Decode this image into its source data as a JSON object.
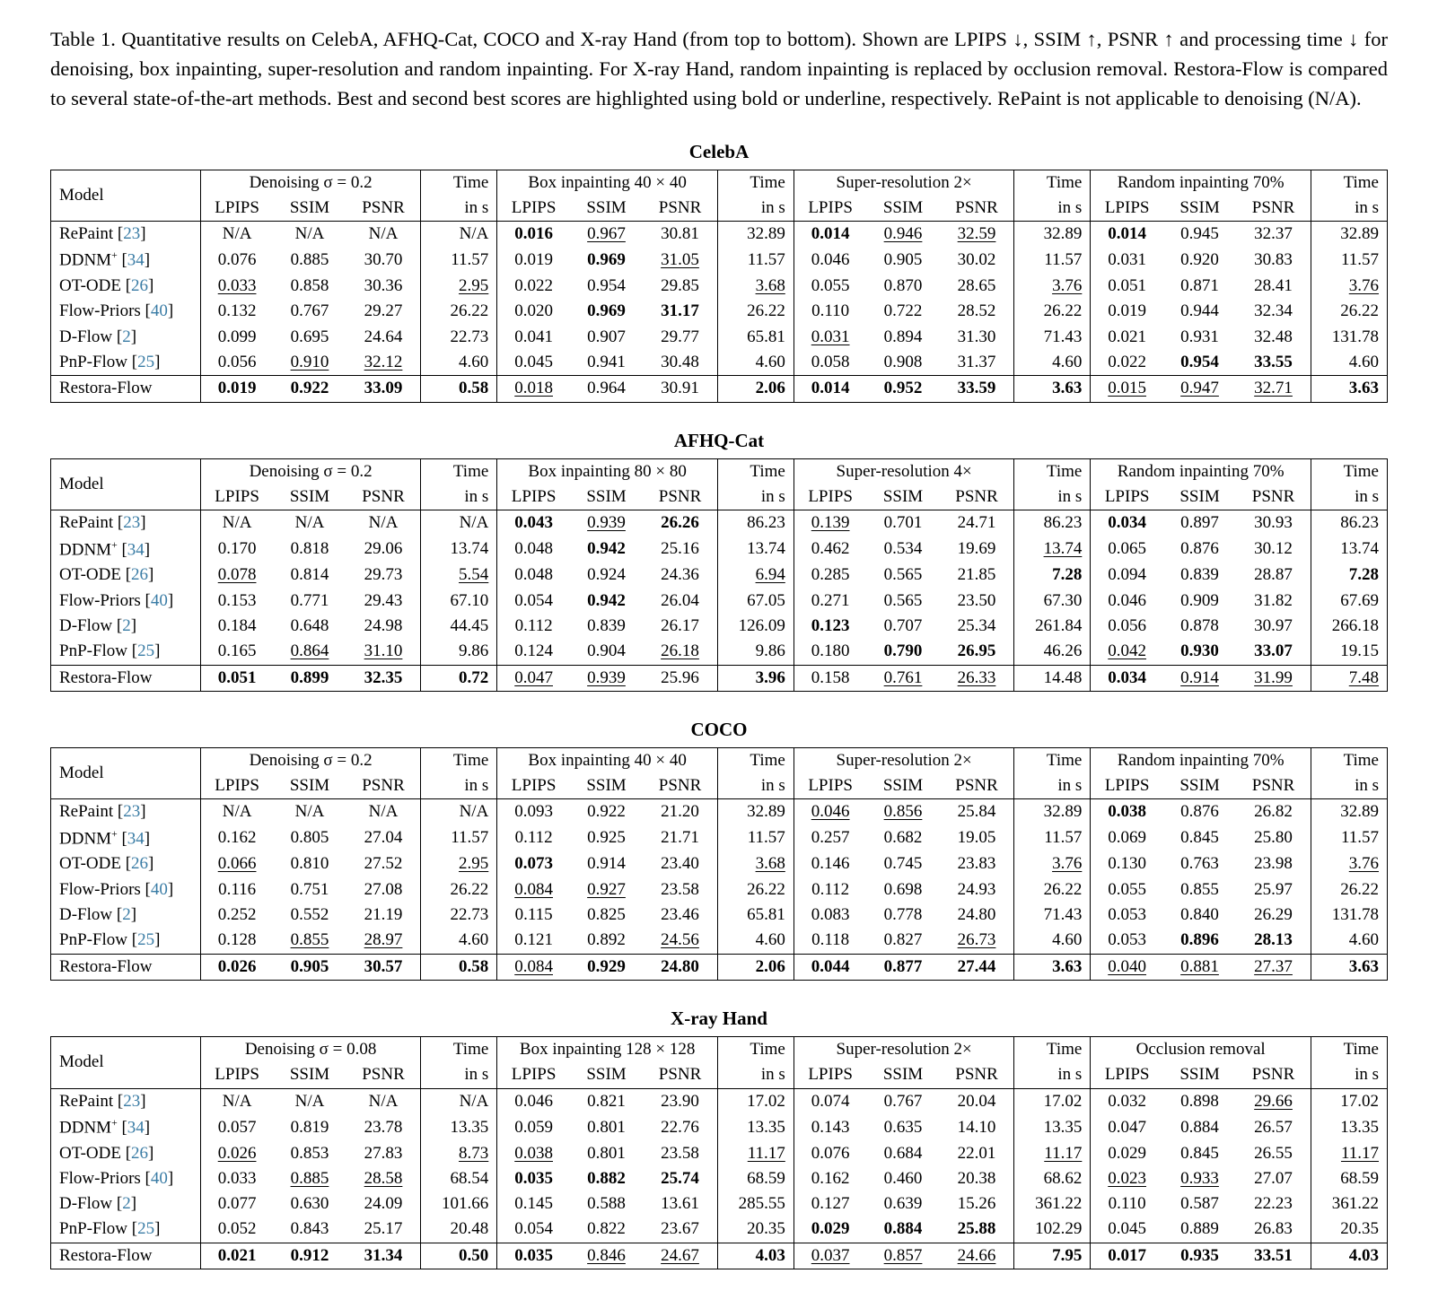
{
  "caption": "Table 1. Quantitative results on CelebA, AFHQ-Cat, COCO and X-ray Hand (from top to bottom). Shown are LPIPS ↓, SSIM ↑, PSNR ↑ and processing time ↓ for denoising, box inpainting, super-resolution and random inpainting. For X-ray Hand, random inpainting is replaced by occlusion removal. Restora-Flow is compared to several state-of-the-art methods. Best and second best scores are highlighted using bold or underline, respectively. RePaint is not applicable to denoising (N/A).",
  "colors": {
    "citation": "#3a7ca5",
    "text": "#000000",
    "background": "#ffffff"
  },
  "headers": {
    "model": "Model",
    "metrics": [
      "LPIPS",
      "SSIM",
      "PSNR"
    ],
    "time_top": "Time",
    "time_unit": "in s"
  },
  "tables": [
    {
      "id": "celeba",
      "title": "CelebA",
      "groups": [
        "Denoising σ = 0.2",
        "Box inpainting 40 × 40",
        "Super-resolution 2×",
        "Random inpainting 70%"
      ],
      "rows": [
        {
          "model": "RePaint",
          "cite": "23",
          "cells": [
            "N/A",
            "N/A",
            "N/A",
            "N/A",
            "b:0.016",
            "u:0.967",
            "30.81",
            "32.89",
            "b:0.014",
            "u:0.946",
            "u:32.59",
            "32.89",
            "b:0.014",
            "0.945",
            "32.37",
            "32.89"
          ]
        },
        {
          "model": "DDNM",
          "sup": "+",
          "cite": "34",
          "cells": [
            "0.076",
            "0.885",
            "30.70",
            "11.57",
            "0.019",
            "b:0.969",
            "u:31.05",
            "11.57",
            "0.046",
            "0.905",
            "30.02",
            "11.57",
            "0.031",
            "0.920",
            "30.83",
            "11.57"
          ]
        },
        {
          "model": "OT-ODE",
          "cite": "26",
          "cells": [
            "u:0.033",
            "0.858",
            "30.36",
            "u:2.95",
            "0.022",
            "0.954",
            "29.85",
            "u:3.68",
            "0.055",
            "0.870",
            "28.65",
            "u:3.76",
            "0.051",
            "0.871",
            "28.41",
            "u:3.76"
          ]
        },
        {
          "model": "Flow-Priors",
          "cite": "40",
          "cells": [
            "0.132",
            "0.767",
            "29.27",
            "26.22",
            "0.020",
            "b:0.969",
            "b:31.17",
            "26.22",
            "0.110",
            "0.722",
            "28.52",
            "26.22",
            "0.019",
            "0.944",
            "32.34",
            "26.22"
          ]
        },
        {
          "model": "D-Flow",
          "cite": "2",
          "cells": [
            "0.099",
            "0.695",
            "24.64",
            "22.73",
            "0.041",
            "0.907",
            "29.77",
            "65.81",
            "u:0.031",
            "0.894",
            "31.30",
            "71.43",
            "0.021",
            "0.931",
            "32.48",
            "131.78"
          ]
        },
        {
          "model": "PnP-Flow",
          "cite": "25",
          "cells": [
            "0.056",
            "u:0.910",
            "u:32.12",
            "4.60",
            "0.045",
            "0.941",
            "30.48",
            "4.60",
            "0.058",
            "0.908",
            "31.37",
            "4.60",
            "0.022",
            "b:0.954",
            "b:33.55",
            "4.60"
          ]
        },
        {
          "model": "Restora-Flow",
          "cells": [
            "b:0.019",
            "b:0.922",
            "b:33.09",
            "b:0.58",
            "u:0.018",
            "0.964",
            "30.91",
            "b:2.06",
            "b:0.014",
            "b:0.952",
            "b:33.59",
            "b:3.63",
            "u:0.015",
            "u:0.947",
            "u:32.71",
            "b:3.63"
          ]
        }
      ]
    },
    {
      "id": "afhq-cat",
      "title": "AFHQ-Cat",
      "groups": [
        "Denoising σ = 0.2",
        "Box inpainting 80 × 80",
        "Super-resolution 4×",
        "Random inpainting 70%"
      ],
      "rows": [
        {
          "model": "RePaint",
          "cite": "23",
          "cells": [
            "N/A",
            "N/A",
            "N/A",
            "N/A",
            "b:0.043",
            "u:0.939",
            "b:26.26",
            "86.23",
            "u:0.139",
            "0.701",
            "24.71",
            "86.23",
            "b:0.034",
            "0.897",
            "30.93",
            "86.23"
          ]
        },
        {
          "model": "DDNM",
          "sup": "+",
          "cite": "34",
          "cells": [
            "0.170",
            "0.818",
            "29.06",
            "13.74",
            "0.048",
            "b:0.942",
            "25.16",
            "13.74",
            "0.462",
            "0.534",
            "19.69",
            "u:13.74",
            "0.065",
            "0.876",
            "30.12",
            "13.74"
          ]
        },
        {
          "model": "OT-ODE",
          "cite": "26",
          "cells": [
            "u:0.078",
            "0.814",
            "29.73",
            "u:5.54",
            "0.048",
            "0.924",
            "24.36",
            "u:6.94",
            "0.285",
            "0.565",
            "21.85",
            "b:7.28",
            "0.094",
            "0.839",
            "28.87",
            "b:7.28"
          ]
        },
        {
          "model": "Flow-Priors",
          "cite": "40",
          "cells": [
            "0.153",
            "0.771",
            "29.43",
            "67.10",
            "0.054",
            "b:0.942",
            "26.04",
            "67.05",
            "0.271",
            "0.565",
            "23.50",
            "67.30",
            "0.046",
            "0.909",
            "31.82",
            "67.69"
          ]
        },
        {
          "model": "D-Flow",
          "cite": "2",
          "cells": [
            "0.184",
            "0.648",
            "24.98",
            "44.45",
            "0.112",
            "0.839",
            "26.17",
            "126.09",
            "b:0.123",
            "0.707",
            "25.34",
            "261.84",
            "0.056",
            "0.878",
            "30.97",
            "266.18"
          ]
        },
        {
          "model": "PnP-Flow",
          "cite": "25",
          "cells": [
            "0.165",
            "u:0.864",
            "u:31.10",
            "9.86",
            "0.124",
            "0.904",
            "u:26.18",
            "9.86",
            "0.180",
            "b:0.790",
            "b:26.95",
            "46.26",
            "u:0.042",
            "b:0.930",
            "b:33.07",
            "19.15"
          ]
        },
        {
          "model": "Restora-Flow",
          "cells": [
            "b:0.051",
            "b:0.899",
            "b:32.35",
            "b:0.72",
            "u:0.047",
            "u:0.939",
            "25.96",
            "b:3.96",
            "0.158",
            "u:0.761",
            "u:26.33",
            "14.48",
            "b:0.034",
            "u:0.914",
            "u:31.99",
            "u:7.48"
          ]
        }
      ]
    },
    {
      "id": "coco",
      "title": "COCO",
      "groups": [
        "Denoising σ = 0.2",
        "Box inpainting 40 × 40",
        "Super-resolution 2×",
        "Random inpainting 70%"
      ],
      "rows": [
        {
          "model": "RePaint",
          "cite": "23",
          "cells": [
            "N/A",
            "N/A",
            "N/A",
            "N/A",
            "0.093",
            "0.922",
            "21.20",
            "32.89",
            "u:0.046",
            "u:0.856",
            "25.84",
            "32.89",
            "b:0.038",
            "0.876",
            "26.82",
            "32.89"
          ]
        },
        {
          "model": "DDNM",
          "sup": "+",
          "cite": "34",
          "cells": [
            "0.162",
            "0.805",
            "27.04",
            "11.57",
            "0.112",
            "0.925",
            "21.71",
            "11.57",
            "0.257",
            "0.682",
            "19.05",
            "11.57",
            "0.069",
            "0.845",
            "25.80",
            "11.57"
          ]
        },
        {
          "model": "OT-ODE",
          "cite": "26",
          "cells": [
            "u:0.066",
            "0.810",
            "27.52",
            "u:2.95",
            "b:0.073",
            "0.914",
            "23.40",
            "u:3.68",
            "0.146",
            "0.745",
            "23.83",
            "u:3.76",
            "0.130",
            "0.763",
            "23.98",
            "u:3.76"
          ]
        },
        {
          "model": "Flow-Priors",
          "cite": "40",
          "cells": [
            "0.116",
            "0.751",
            "27.08",
            "26.22",
            "u:0.084",
            "u:0.927",
            "23.58",
            "26.22",
            "0.112",
            "0.698",
            "24.93",
            "26.22",
            "0.055",
            "0.855",
            "25.97",
            "26.22"
          ]
        },
        {
          "model": "D-Flow",
          "cite": "2",
          "cells": [
            "0.252",
            "0.552",
            "21.19",
            "22.73",
            "0.115",
            "0.825",
            "23.46",
            "65.81",
            "0.083",
            "0.778",
            "24.80",
            "71.43",
            "0.053",
            "0.840",
            "26.29",
            "131.78"
          ]
        },
        {
          "model": "PnP-Flow",
          "cite": "25",
          "cells": [
            "0.128",
            "u:0.855",
            "u:28.97",
            "4.60",
            "0.121",
            "0.892",
            "u:24.56",
            "4.60",
            "0.118",
            "0.827",
            "u:26.73",
            "4.60",
            "0.053",
            "b:0.896",
            "b:28.13",
            "4.60"
          ]
        },
        {
          "model": "Restora-Flow",
          "cells": [
            "b:0.026",
            "b:0.905",
            "b:30.57",
            "b:0.58",
            "u:0.084",
            "b:0.929",
            "b:24.80",
            "b:2.06",
            "b:0.044",
            "b:0.877",
            "b:27.44",
            "b:3.63",
            "u:0.040",
            "u:0.881",
            "u:27.37",
            "b:3.63"
          ]
        }
      ]
    },
    {
      "id": "xray-hand",
      "title": "X-ray Hand",
      "groups": [
        "Denoising σ = 0.08",
        "Box inpainting 128 × 128",
        "Super-resolution 2×",
        "Occlusion removal"
      ],
      "rows": [
        {
          "model": "RePaint",
          "cite": "23",
          "cells": [
            "N/A",
            "N/A",
            "N/A",
            "N/A",
            "0.046",
            "0.821",
            "23.90",
            "17.02",
            "0.074",
            "0.767",
            "20.04",
            "17.02",
            "0.032",
            "0.898",
            "u:29.66",
            "17.02"
          ]
        },
        {
          "model": "DDNM",
          "sup": "+",
          "cite": "34",
          "cells": [
            "0.057",
            "0.819",
            "23.78",
            "13.35",
            "0.059",
            "0.801",
            "22.76",
            "13.35",
            "0.143",
            "0.635",
            "14.10",
            "13.35",
            "0.047",
            "0.884",
            "26.57",
            "13.35"
          ]
        },
        {
          "model": "OT-ODE",
          "cite": "26",
          "cells": [
            "u:0.026",
            "0.853",
            "27.83",
            "u:8.73",
            "u:0.038",
            "0.801",
            "23.58",
            "u:11.17",
            "0.076",
            "0.684",
            "22.01",
            "u:11.17",
            "0.029",
            "0.845",
            "26.55",
            "u:11.17"
          ]
        },
        {
          "model": "Flow-Priors",
          "cite": "40",
          "cells": [
            "0.033",
            "u:0.885",
            "u:28.58",
            "68.54",
            "b:0.035",
            "b:0.882",
            "b:25.74",
            "68.59",
            "0.162",
            "0.460",
            "20.38",
            "68.62",
            "u:0.023",
            "u:0.933",
            "27.07",
            "68.59"
          ]
        },
        {
          "model": "D-Flow",
          "cite": "2",
          "cells": [
            "0.077",
            "0.630",
            "24.09",
            "101.66",
            "0.145",
            "0.588",
            "13.61",
            "285.55",
            "0.127",
            "0.639",
            "15.26",
            "361.22",
            "0.110",
            "0.587",
            "22.23",
            "361.22"
          ]
        },
        {
          "model": "PnP-Flow",
          "cite": "25",
          "cells": [
            "0.052",
            "0.843",
            "25.17",
            "20.48",
            "0.054",
            "0.822",
            "23.67",
            "20.35",
            "b:0.029",
            "b:0.884",
            "b:25.88",
            "102.29",
            "0.045",
            "0.889",
            "26.83",
            "20.35"
          ]
        },
        {
          "model": "Restora-Flow",
          "cells": [
            "b:0.021",
            "b:0.912",
            "b:31.34",
            "b:0.50",
            "b:0.035",
            "u:0.846",
            "u:24.67",
            "b:4.03",
            "u:0.037",
            "u:0.857",
            "u:24.66",
            "b:7.95",
            "b:0.017",
            "b:0.935",
            "b:33.51",
            "b:4.03"
          ]
        }
      ]
    }
  ]
}
